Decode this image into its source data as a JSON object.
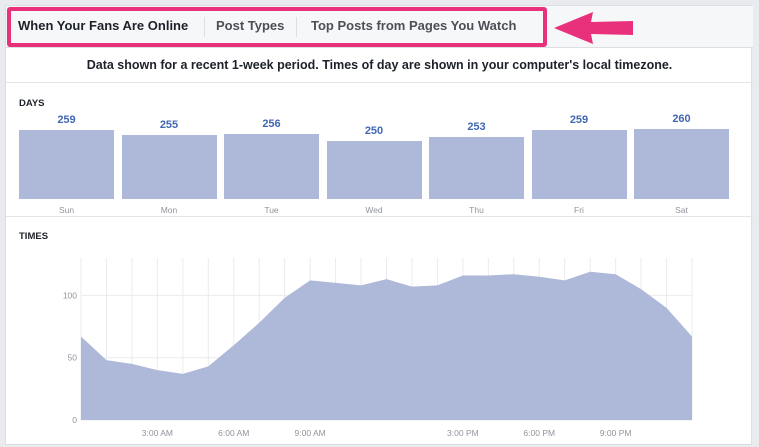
{
  "tabs": [
    {
      "label": "When Your Fans Are Online",
      "active": true
    },
    {
      "label": "Post Types",
      "active": false
    },
    {
      "label": "Top Posts from Pages You Watch",
      "active": false
    }
  ],
  "info_text": "Data shown for a recent 1-week period. Times of day are shown in your computer's local timezone.",
  "days_section": {
    "label": "DAYS"
  },
  "times_section": {
    "label": "TIMES"
  },
  "colors": {
    "bar": "#aeb8d8",
    "value": "#4267b2",
    "highlight": "#e8317a"
  },
  "chart_data": [
    {
      "type": "bar",
      "categories": [
        "Sun",
        "Mon",
        "Tue",
        "Wed",
        "Thu",
        "Fri",
        "Sat"
      ],
      "values": [
        259,
        255,
        256,
        250,
        253,
        259,
        260
      ]
    },
    {
      "type": "area",
      "x_tick_labels": [
        "3:00 AM",
        "6:00 AM",
        "9:00 AM",
        "3:00 PM",
        "6:00 PM",
        "9:00 PM"
      ],
      "x_ticks_hours": [
        3,
        6,
        9,
        15,
        18,
        21
      ],
      "x_range_hours": [
        0,
        24
      ],
      "y_ticks": [
        0,
        50,
        100
      ],
      "ylim": [
        0,
        130
      ],
      "grid": true,
      "hours": [
        0,
        1,
        2,
        3,
        4,
        5,
        6,
        7,
        8,
        9,
        10,
        11,
        12,
        13,
        14,
        15,
        16,
        17,
        18,
        19,
        20,
        21,
        22,
        23,
        24
      ],
      "values": [
        67,
        48,
        45,
        40,
        37,
        43,
        60,
        78,
        98,
        112,
        110,
        108,
        113,
        107,
        108,
        116,
        116,
        117,
        115,
        112,
        119,
        117,
        105,
        90,
        67
      ]
    }
  ]
}
